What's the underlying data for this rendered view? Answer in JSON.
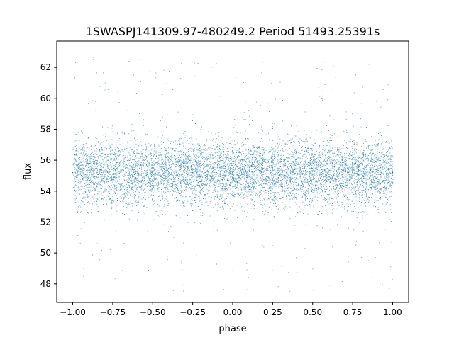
{
  "chart_data": {
    "type": "scatter",
    "title": "1SWASPJ141309.97-480249.2 Period 51493.25391s",
    "xlabel": "phase",
    "ylabel": "flux",
    "xlim": [
      -1.1,
      1.1
    ],
    "ylim": [
      46.8,
      63.7
    ],
    "xticks": [
      -1.0,
      -0.75,
      -0.5,
      -0.25,
      0.0,
      0.25,
      0.5,
      0.75,
      1.0
    ],
    "xtick_labels": [
      "−1.00",
      "−0.75",
      "−0.50",
      "−0.25",
      "0.00",
      "0.25",
      "0.50",
      "0.75",
      "1.00"
    ],
    "yticks": [
      48,
      50,
      52,
      54,
      56,
      58,
      60,
      62
    ],
    "ytick_labels": [
      "48",
      "50",
      "52",
      "54",
      "56",
      "58",
      "60",
      "62"
    ],
    "grid": false,
    "legend": "none",
    "marker_color": "#1f77b4",
    "series": [
      {
        "phase_range": [
          -1.0,
          1.0
        ],
        "flux_range": [
          47.5,
          62.8
        ],
        "flux_center": 55.2,
        "dense_band": [
          53.0,
          57.5
        ],
        "note_values": [
          {
            "x": -1.0,
            "y": 55.2
          },
          {
            "x": -0.75,
            "y": 55.1
          },
          {
            "x": -0.5,
            "y": 55.3
          },
          {
            "x": -0.25,
            "y": 55.2
          },
          {
            "x": 0.0,
            "y": 55.2
          },
          {
            "x": 0.25,
            "y": 55.3
          },
          {
            "x": 0.5,
            "y": 55.1
          },
          {
            "x": 0.75,
            "y": 55.2
          },
          {
            "x": 1.0,
            "y": 55.2
          }
        ]
      }
    ]
  }
}
